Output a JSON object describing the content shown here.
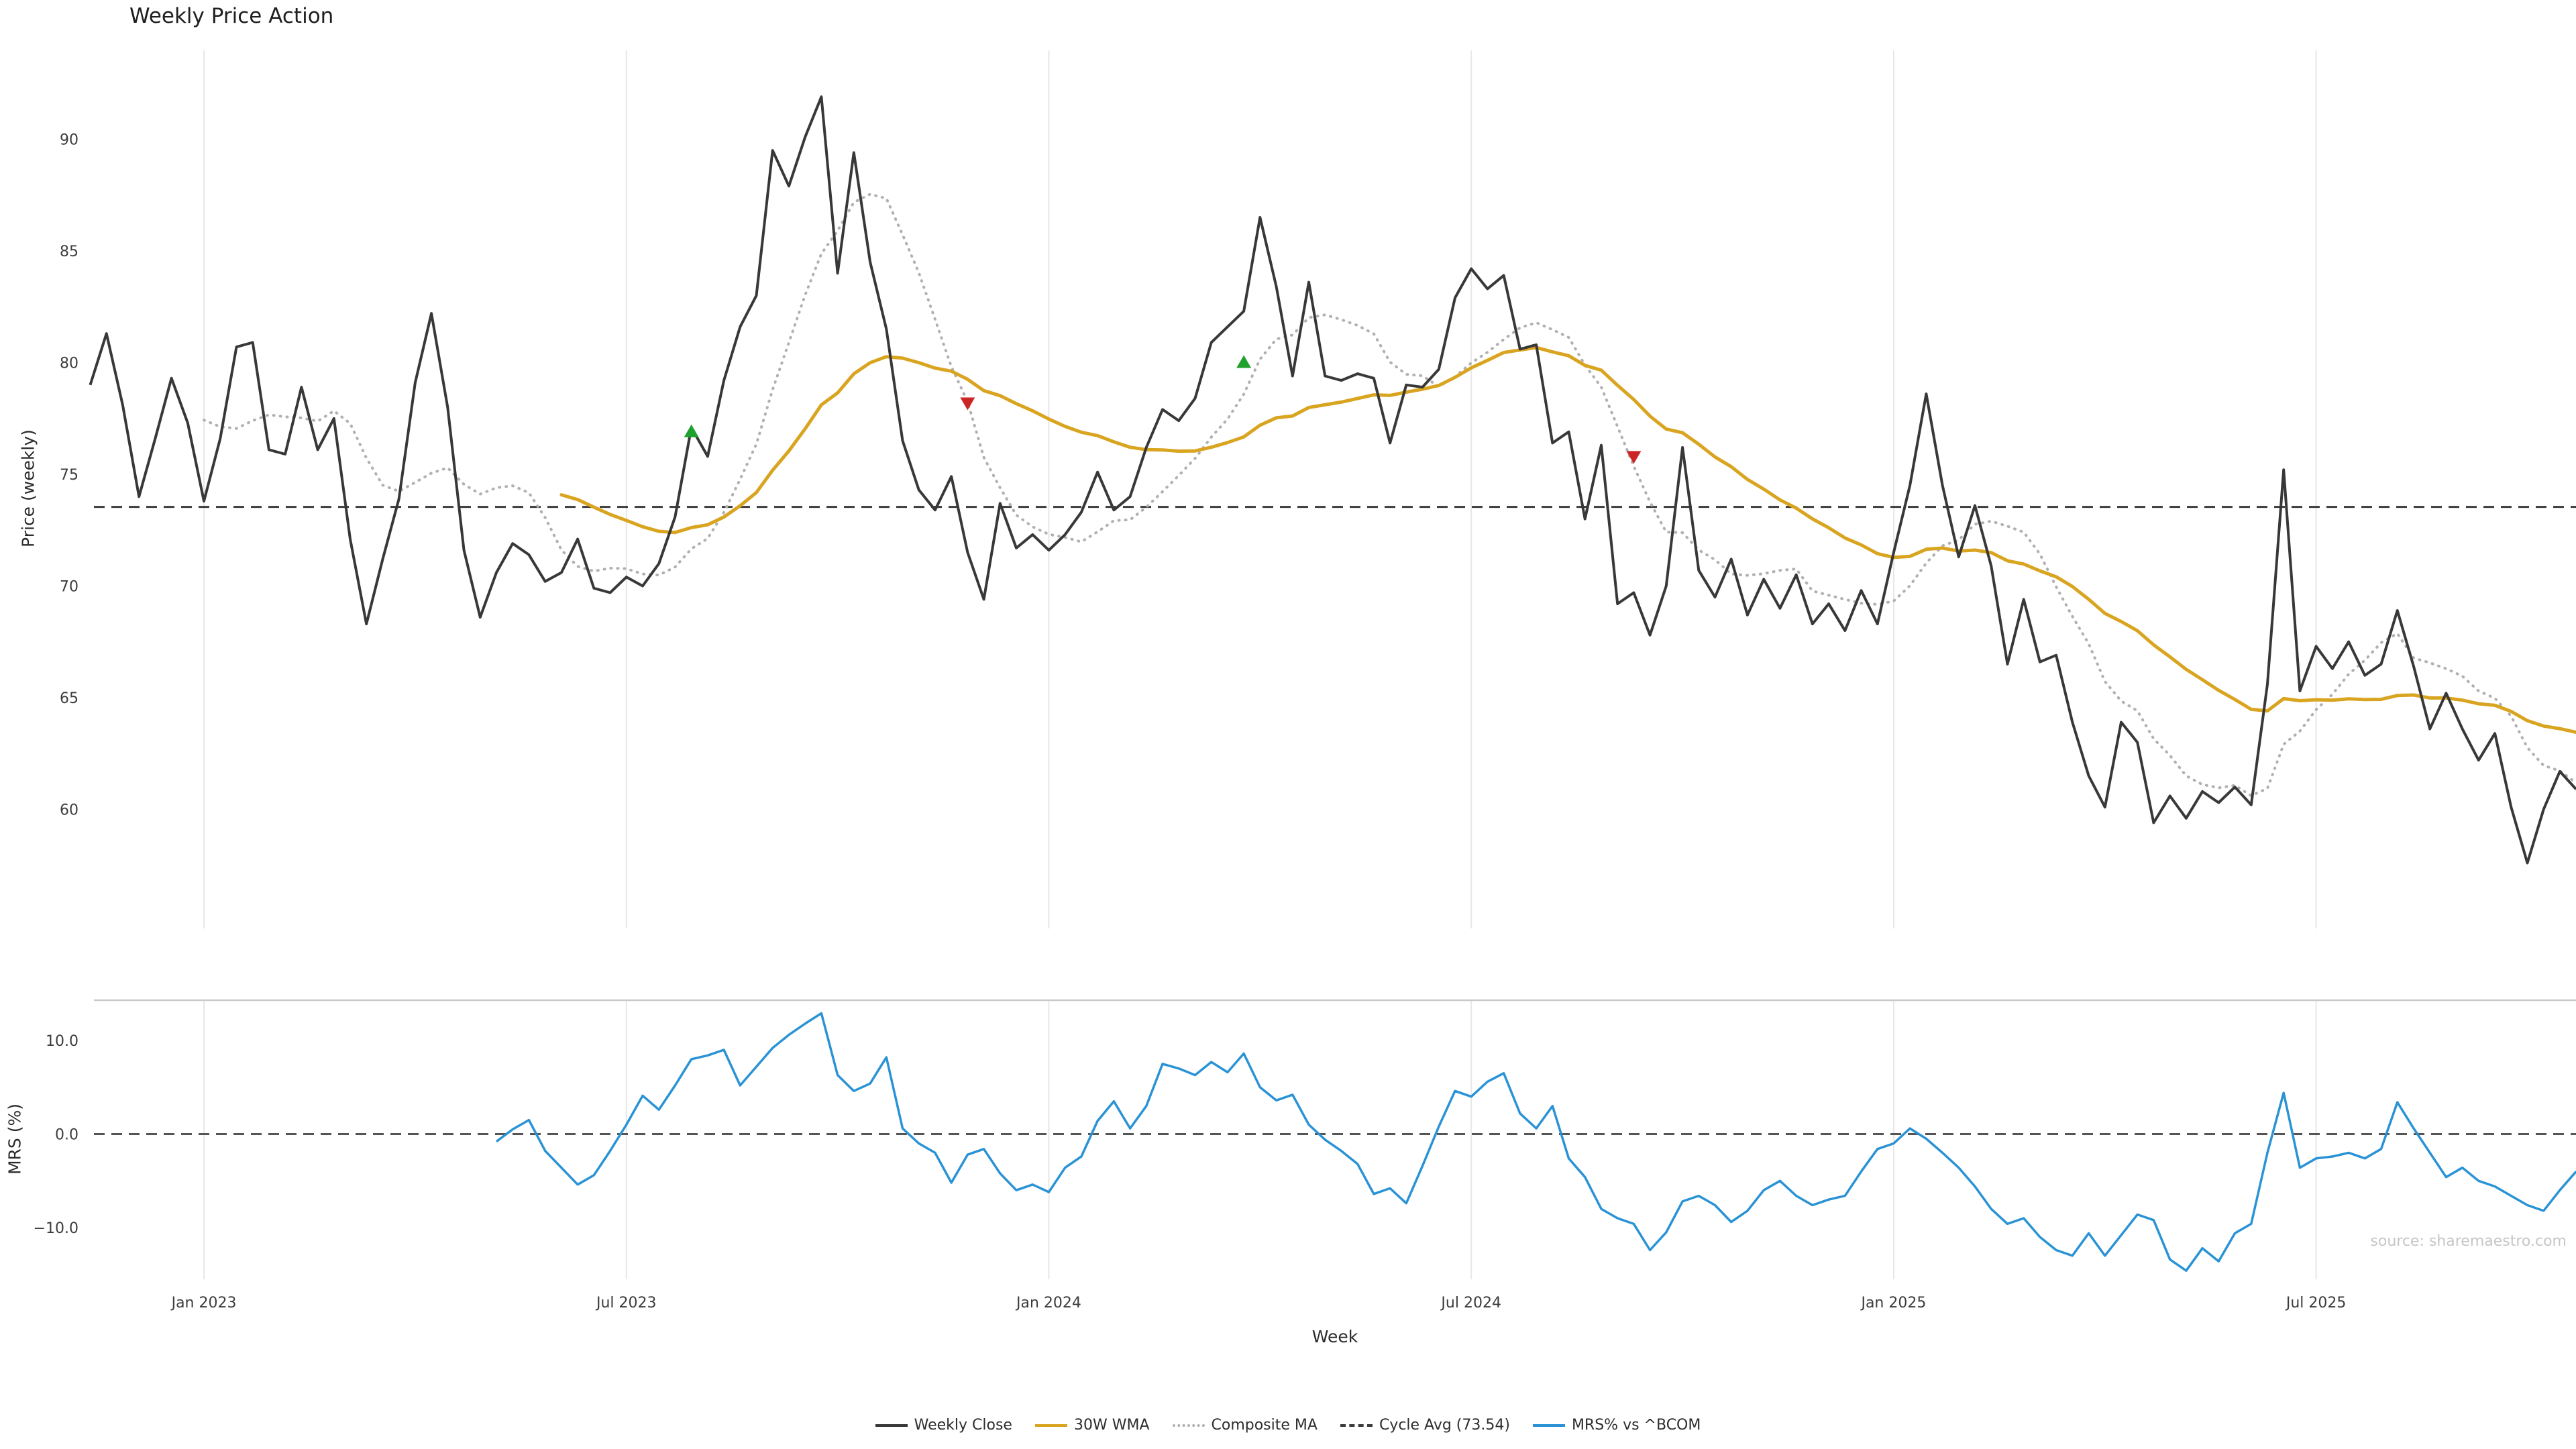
{
  "title": "Weekly Price Action",
  "axes": {
    "price_ylabel": "Price (weekly)",
    "mrs_ylabel": "MRS (%)",
    "xlabel": "Week"
  },
  "source": "source: sharemaestro.com",
  "colors": {
    "close": "#383838",
    "wma": "#d9a41f",
    "composite": "#b0b0b0",
    "cycle": "#3c3c3c",
    "mrs": "#2a93d5",
    "buy": "#1fa12e",
    "sell": "#cc2525",
    "grid": "#e7e7e7",
    "spine": "#c9c9c9",
    "zero": "#555555",
    "tick_text": "#3c3c3c",
    "source_text": "#c6c6c6"
  },
  "legend": [
    {
      "label": "Weekly Close",
      "color": "#383838",
      "style": "solid"
    },
    {
      "label": "30W WMA",
      "color": "#d9a41f",
      "style": "solid"
    },
    {
      "label": "Composite MA",
      "color": "#b0b0b0",
      "style": "dotted"
    },
    {
      "label": "Cycle Avg (73.54)",
      "color": "#3c3c3c",
      "style": "dashed"
    },
    {
      "label": "MRS% vs ^BCOM",
      "color": "#2a93d5",
      "style": "solid"
    }
  ],
  "chart_data": {
    "type": "line",
    "title": "Weekly Price Action",
    "x_axis": {
      "label": "Week",
      "unit": "week_index",
      "ticks": [
        {
          "index": 7,
          "label": "Jan 2023"
        },
        {
          "index": 33,
          "label": "Jul 2023"
        },
        {
          "index": 59,
          "label": "Jan 2024"
        },
        {
          "index": 85,
          "label": "Jul 2024"
        },
        {
          "index": 111,
          "label": "Jan 2025"
        },
        {
          "index": 137,
          "label": "Jul 2025"
        }
      ]
    },
    "price_panel": {
      "ylabel": "Price (weekly)",
      "ylim": [
        54.7,
        94.0
      ],
      "grid": "vertical-only",
      "yticks": [
        {
          "value": 90,
          "label": "90"
        },
        {
          "value": 85,
          "label": "85"
        },
        {
          "value": 80,
          "label": "80"
        },
        {
          "value": 75,
          "label": "75"
        },
        {
          "value": 70,
          "label": "70"
        },
        {
          "value": 65,
          "label": "65"
        },
        {
          "value": 60,
          "label": "60"
        }
      ],
      "series": {
        "weekly_close": {
          "name": "Weekly Close",
          "values": [
            79.0,
            81.3,
            78.1,
            74.0,
            76.6,
            79.3,
            77.3,
            73.8,
            76.6,
            80.7,
            80.9,
            76.1,
            75.9,
            78.9,
            76.1,
            77.5,
            72.1,
            68.3,
            71.2,
            73.9,
            79.1,
            82.2,
            78.0,
            71.6,
            68.6,
            70.6,
            71.9,
            71.4,
            70.2,
            70.6,
            72.1,
            69.9,
            69.7,
            70.4,
            70.0,
            71.0,
            73.1,
            77.1,
            75.8,
            79.2,
            81.6,
            83.0,
            89.5,
            87.9,
            90.1,
            91.9,
            84.0,
            89.4,
            84.5,
            81.5,
            76.5,
            74.3,
            73.4,
            74.9,
            71.5,
            69.4,
            73.7,
            71.7,
            72.3,
            71.6,
            72.3,
            73.3,
            75.1,
            73.4,
            74.0,
            76.2,
            77.9,
            77.4,
            78.4,
            80.9,
            81.6,
            82.3,
            86.5,
            83.4,
            79.4,
            83.6,
            79.4,
            79.2,
            79.5,
            79.3,
            76.4,
            79.0,
            78.9,
            79.7,
            82.9,
            84.2,
            83.3,
            83.9,
            80.6,
            80.8,
            76.4,
            76.9,
            73.0,
            76.3,
            69.2,
            69.7,
            67.8,
            70.0,
            76.2,
            70.7,
            69.5,
            71.2,
            68.7,
            70.3,
            69.0,
            70.5,
            68.3,
            69.2,
            68.0,
            69.8,
            68.3,
            71.5,
            74.5,
            78.6,
            74.5,
            71.3,
            73.6,
            70.9,
            66.5,
            69.4,
            66.6,
            66.9,
            63.9,
            61.5,
            60.1,
            63.9,
            63.0,
            59.4,
            60.6,
            59.6,
            60.8,
            60.3,
            61.0,
            60.2,
            65.6,
            75.2,
            65.3,
            67.3,
            66.3,
            67.5,
            66.0,
            66.5,
            68.9,
            66.4,
            63.6,
            65.2,
            63.6,
            62.2,
            63.4,
            60.1,
            57.6,
            60.0,
            61.7,
            60.9
          ]
        },
        "wma_30w": {
          "name": "30W WMA",
          "window": 30,
          "derived_from": "weekly_close"
        },
        "composite_ma": {
          "name": "Composite MA",
          "window": 8,
          "derived_from": "weekly_close"
        },
        "cycle_avg": {
          "name": "Cycle Avg",
          "value": 73.54
        }
      },
      "signals": {
        "buy": [
          {
            "index": 37,
            "price": 76.9
          },
          {
            "index": 71,
            "price": 80.0
          }
        ],
        "sell": [
          {
            "index": 54,
            "price": 78.2
          },
          {
            "index": 95,
            "price": 75.8
          }
        ]
      }
    },
    "mrs_panel": {
      "ylabel": "MRS (%)",
      "ylim": [
        -15.5,
        14.3
      ],
      "zero_line": 0,
      "yticks": [
        {
          "value": 10,
          "label": "10.0"
        },
        {
          "value": 0,
          "label": "0.0"
        },
        {
          "value": -10,
          "label": "−10.0"
        }
      ],
      "series": {
        "mrs": {
          "name": "MRS% vs ^BCOM",
          "start_index": 25,
          "values": [
            -0.8,
            0.5,
            1.5,
            -1.8,
            -3.6,
            -5.4,
            -4.4,
            -1.8,
            1.0,
            4.1,
            2.6,
            5.2,
            8.0,
            8.4,
            9.0,
            5.2,
            7.2,
            9.2,
            10.6,
            11.8,
            12.9,
            6.3,
            4.6,
            5.4,
            8.2,
            0.6,
            -1.0,
            -2.0,
            -5.2,
            -2.2,
            -1.6,
            -4.2,
            -6.0,
            -5.4,
            -6.2,
            -3.6,
            -2.4,
            1.4,
            3.5,
            0.6,
            3.0,
            7.5,
            7.0,
            6.3,
            7.7,
            6.6,
            8.6,
            5.0,
            3.6,
            4.2,
            1.0,
            -0.6,
            -1.8,
            -3.2,
            -6.4,
            -5.8,
            -7.4,
            -3.4,
            0.8,
            4.6,
            4.0,
            5.6,
            6.5,
            2.2,
            0.6,
            3.0,
            -2.6,
            -4.6,
            -8.0,
            -9.0,
            -9.6,
            -12.4,
            -10.5,
            -7.2,
            -6.6,
            -7.6,
            -9.4,
            -8.2,
            -6.0,
            -5.0,
            -6.6,
            -7.6,
            -7.0,
            -6.6,
            -4.0,
            -1.6,
            -1.0,
            0.6,
            -0.5,
            -2.0,
            -3.6,
            -5.6,
            -8.0,
            -9.6,
            -9.0,
            -11.0,
            -12.4,
            -13.0,
            -10.6,
            -13.0,
            -10.8,
            -8.6,
            -9.2,
            -13.4,
            -14.6,
            -12.2,
            -13.6,
            -10.6,
            -9.6,
            -2.0,
            4.4,
            -3.6,
            -2.6,
            -2.4,
            -2.0,
            -2.6,
            -1.6,
            3.4,
            0.6,
            -2.0,
            -4.6,
            -3.6,
            -5.0,
            -5.6,
            -6.6,
            -7.6,
            -8.2,
            -6.0,
            -4.0
          ]
        }
      }
    }
  }
}
